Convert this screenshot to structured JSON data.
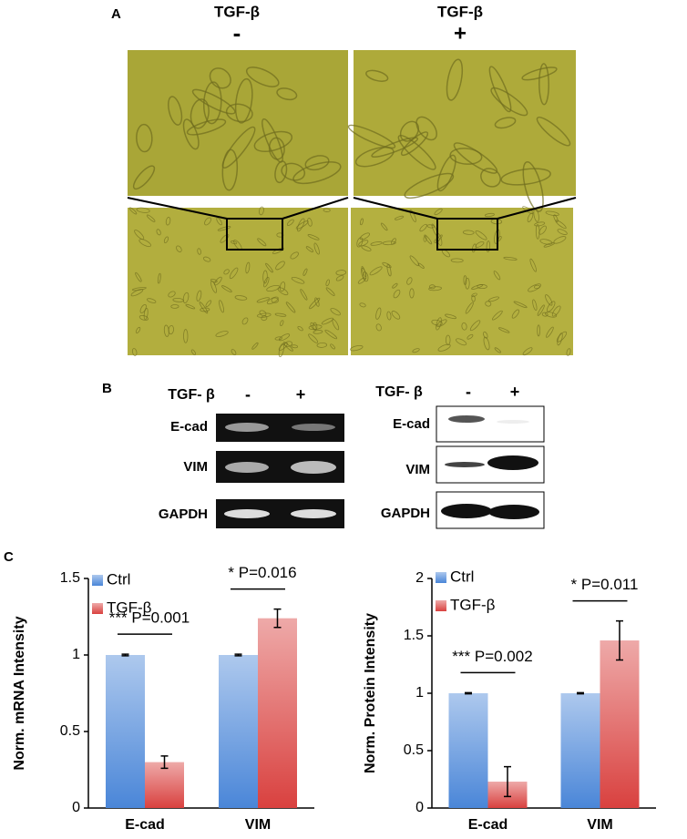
{
  "panel_a": {
    "label": "A",
    "conditions": [
      {
        "name": "TGF-β",
        "sign": "-"
      },
      {
        "name": "TGF-β",
        "sign": "+"
      }
    ]
  },
  "panel_b": {
    "label": "B",
    "rt_pcr": {
      "treatment": "TGF- β",
      "signs": [
        "-",
        "+"
      ],
      "rows": [
        "E-cad",
        "VIM",
        "GAPDH"
      ]
    },
    "western": {
      "treatment": "TGF- β",
      "signs": [
        "-",
        "+"
      ],
      "rows": [
        "E-cad",
        "VIM",
        "GAPDH"
      ]
    }
  },
  "panel_c": {
    "label": "C"
  },
  "chart_data": [
    {
      "type": "bar",
      "ylabel": "Norm. mRNA Intensity",
      "categories": [
        "E-cad",
        "VIM"
      ],
      "series": [
        {
          "name": "Ctrl",
          "color": "#4a86d8",
          "values": [
            1,
            1
          ],
          "errors": [
            0.005,
            0.005
          ]
        },
        {
          "name": "TGF-β",
          "color": "#d9413f",
          "values": [
            0.3,
            1.24
          ],
          "errors": [
            0.04,
            0.06
          ]
        }
      ],
      "ylim": [
        0,
        1.5
      ],
      "yticks": [
        0,
        0.5,
        1,
        1.5
      ],
      "annotations": [
        "*** P=0.001",
        "* P=0.016"
      ]
    },
    {
      "type": "bar",
      "ylabel": "Norm. Protein Intensity",
      "categories": [
        "E-cad",
        "VIM"
      ],
      "series": [
        {
          "name": "Ctrl",
          "color": "#4a86d8",
          "values": [
            1,
            1
          ],
          "errors": [
            0.005,
            0.005
          ]
        },
        {
          "name": "TGF-β",
          "color": "#d9413f",
          "values": [
            0.23,
            1.46
          ],
          "errors": [
            0.13,
            0.17
          ]
        }
      ],
      "ylim": [
        0,
        2
      ],
      "yticks": [
        0,
        0.5,
        1,
        1.5,
        2
      ],
      "annotations": [
        "*** P=0.002",
        "* P=0.011"
      ]
    }
  ]
}
